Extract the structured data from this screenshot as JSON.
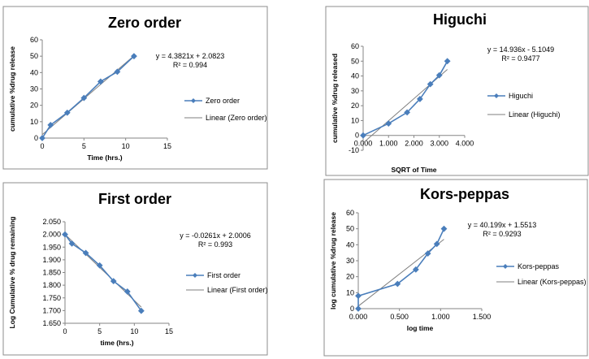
{
  "chart_data": [
    {
      "type": "scatter",
      "title": "Zero order",
      "xlabel": "Time (hrs.)",
      "ylabel": "cumulative %drug release",
      "xlim": [
        0,
        15
      ],
      "ylim": [
        0,
        60
      ],
      "xticks": [
        "0",
        "5",
        "10",
        "15"
      ],
      "yticks": [
        "0",
        "10",
        "20",
        "30",
        "40",
        "50",
        "60"
      ],
      "equation": "y = 4.3821x + 2.0823",
      "r2": "R² = 0.994",
      "legend_position": "right",
      "series": [
        {
          "name": "Zero order",
          "x": [
            0,
            1,
            3,
            5,
            7,
            9,
            11
          ],
          "y": [
            0,
            8,
            15.5,
            24.5,
            34.5,
            40.5,
            50
          ]
        },
        {
          "name": "Linear (Zero order)",
          "x": [
            0,
            11
          ],
          "y": [
            2.0823,
            50.2854
          ]
        }
      ]
    },
    {
      "type": "scatter",
      "title": "Higuchi",
      "xlabel": "SQRT of Time",
      "ylabel": "cumulative %drug released",
      "xlim": [
        0,
        4
      ],
      "ylim": [
        -10,
        60
      ],
      "xticks": [
        "0.000",
        "1.000",
        "2.000",
        "3.000",
        "4.000"
      ],
      "yticks": [
        "-10",
        "0",
        "10",
        "20",
        "30",
        "40",
        "50",
        "60"
      ],
      "equation": "y = 14.936x - 5.1049",
      "r2": "R² = 0.9477",
      "legend_position": "right",
      "series": [
        {
          "name": "Higuchi",
          "x": [
            0,
            1,
            1.732,
            2.236,
            2.646,
            3,
            3.317
          ],
          "y": [
            0,
            8,
            15.5,
            24.5,
            34.5,
            40.5,
            50
          ]
        },
        {
          "name": "Linear (Higuchi)",
          "x": [
            0,
            3.317
          ],
          "y": [
            -5.1049,
            44.438
          ]
        }
      ]
    },
    {
      "type": "scatter",
      "title": "First order",
      "xlabel": "time (hrs.)",
      "ylabel": "Log Cumulative % drug remaining",
      "xlim": [
        0,
        15
      ],
      "ylim": [
        1.65,
        2.05
      ],
      "xticks": [
        "0",
        "5",
        "10",
        "15"
      ],
      "yticks": [
        "1.650",
        "1.700",
        "1.750",
        "1.800",
        "1.850",
        "1.900",
        "1.950",
        "2.000",
        "2.050"
      ],
      "equation": "y = -0.0261x + 2.0006",
      "r2": "R² = 0.993",
      "legend_position": "right",
      "series": [
        {
          "name": "First order",
          "x": [
            0,
            1,
            3,
            5,
            7,
            9,
            11
          ],
          "y": [
            2.0,
            1.964,
            1.927,
            1.878,
            1.816,
            1.775,
            1.699
          ]
        },
        {
          "name": "Linear (First order)",
          "x": [
            0,
            11
          ],
          "y": [
            2.0006,
            1.7135
          ]
        }
      ]
    },
    {
      "type": "scatter",
      "title": "Kors-peppas",
      "xlabel": "log time",
      "ylabel": "log cumulative %drug release",
      "xlim": [
        0,
        1.5
      ],
      "ylim": [
        0,
        60
      ],
      "xticks": [
        "0.000",
        "0.500",
        "1.000",
        "1.500"
      ],
      "yticks": [
        "0",
        "10",
        "20",
        "30",
        "40",
        "50",
        "60"
      ],
      "equation": "y = 40.199x + 1.5513",
      "r2": "R² = 0.9293",
      "legend_position": "right",
      "series": [
        {
          "name": "Kors-peppas",
          "x": [
            0,
            0,
            0.477,
            0.699,
            0.845,
            0.954,
            1.041
          ],
          "y": [
            0,
            8,
            15.5,
            24.5,
            34.5,
            40.5,
            50
          ]
        },
        {
          "name": "Linear (Kors-peppas)",
          "x": [
            0,
            1.041
          ],
          "y": [
            1.5513,
            43.398
          ]
        }
      ]
    }
  ]
}
